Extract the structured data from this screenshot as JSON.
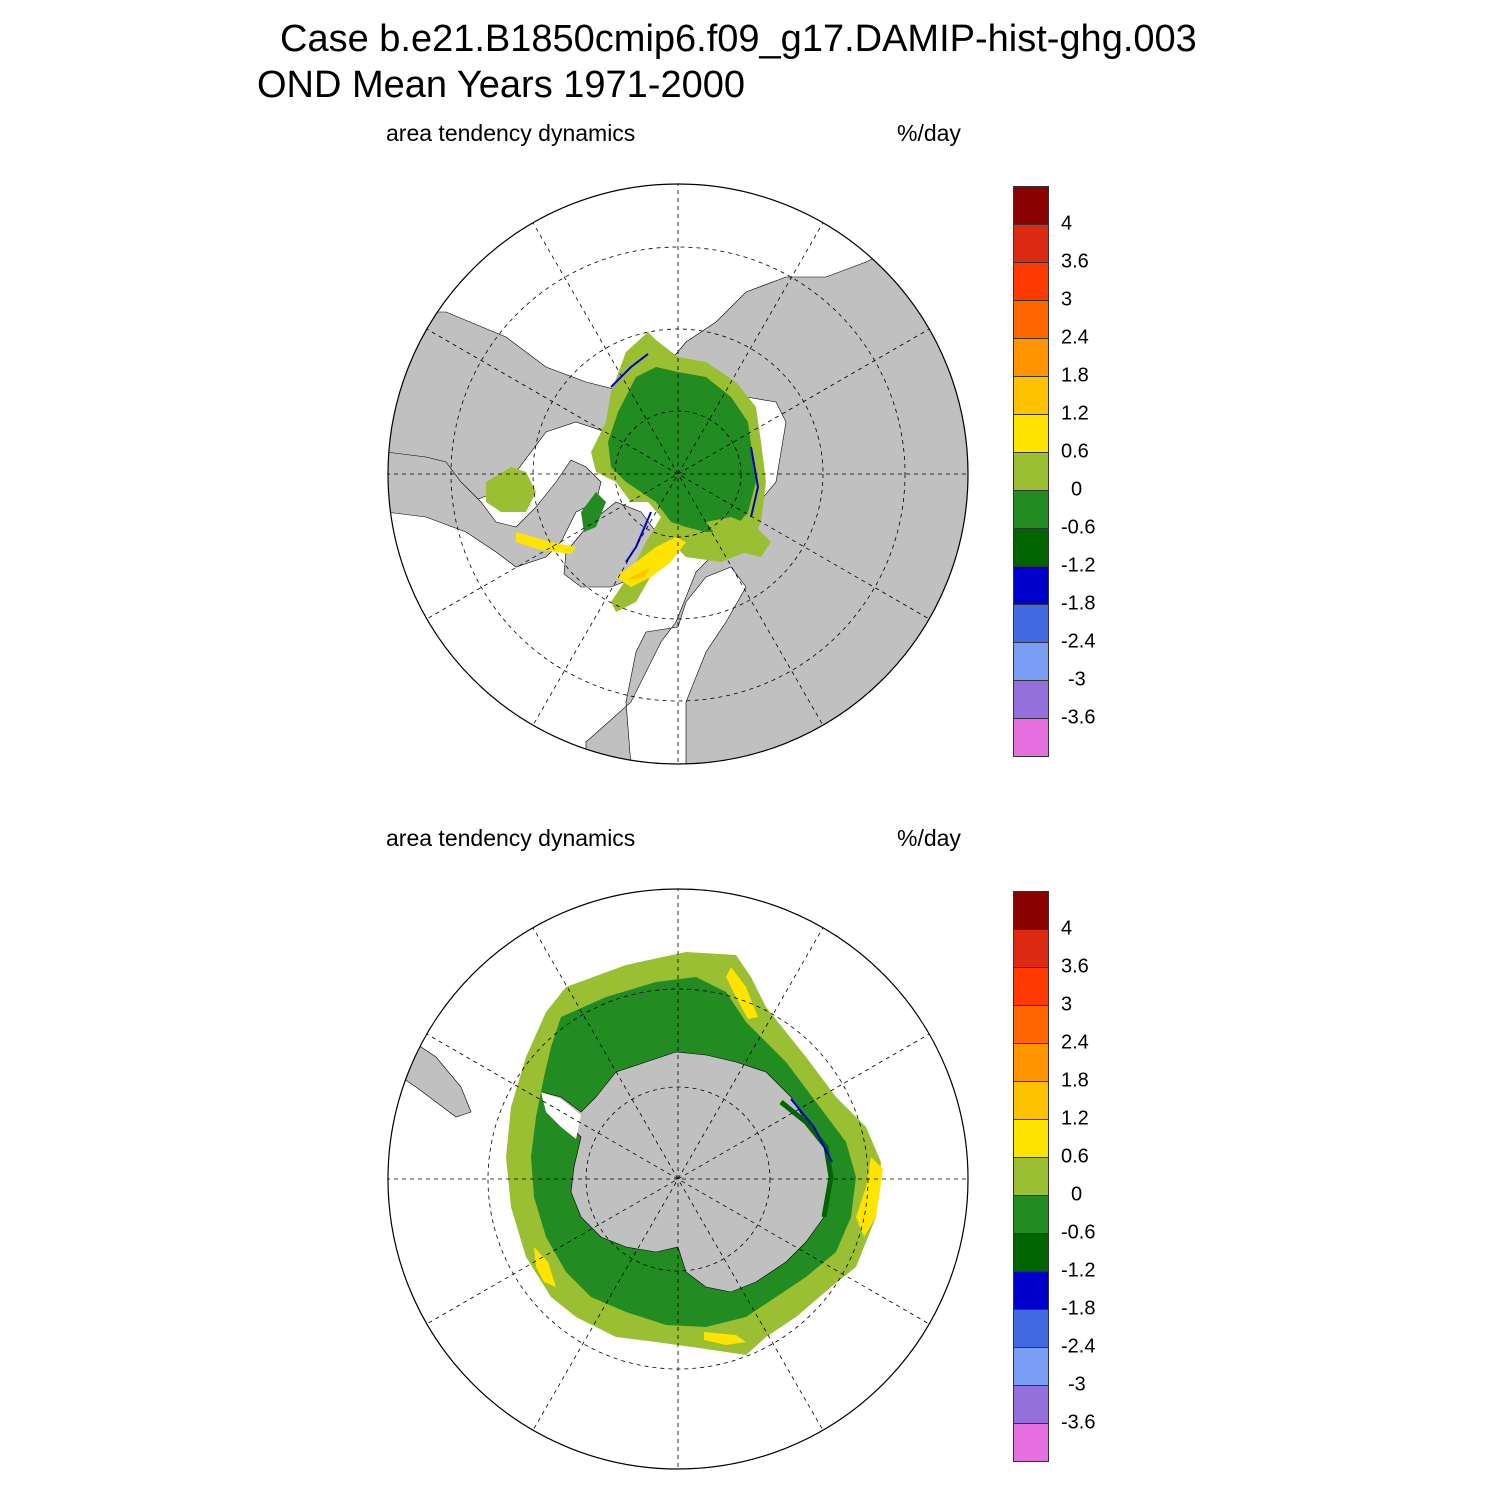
{
  "title": {
    "case": "Case b.e21.B1850cmip6.f09_g17.DAMIP-hist-ghg.003",
    "period": "OND Mean   Years 1971-2000"
  },
  "panels": [
    {
      "id": "north",
      "variable": "area tendency dynamics",
      "units": "%/day",
      "hemisphere": "Northern"
    },
    {
      "id": "south",
      "variable": "area tendency dynamics",
      "units": "%/day",
      "hemisphere": "Southern"
    }
  ],
  "colorbar": {
    "labels": [
      "4",
      "3.6",
      "3",
      "2.4",
      "1.8",
      "1.2",
      "0.6",
      "0",
      "-0.6",
      "-1.2",
      "-1.8",
      "-2.4",
      "-3",
      "-3.6"
    ],
    "colors": [
      "#8b0000",
      "#dc2a12",
      "#ff3a00",
      "#ff6600",
      "#ff9400",
      "#ffc200",
      "#ffe400",
      "#9abf32",
      "#228b22",
      "#006400",
      "#0000cd",
      "#4169e1",
      "#7a9ef5",
      "#9370db",
      "#e56fdf"
    ]
  },
  "map_colors": {
    "land": "#c0c0c0",
    "ocean": "#ffffff",
    "grid": "#000000"
  }
}
